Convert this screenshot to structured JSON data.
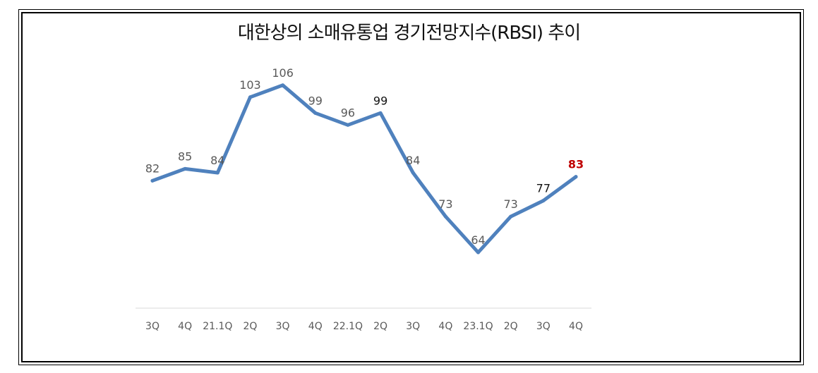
{
  "chart_data": {
    "type": "line",
    "title": "대한상의 소매유통업 경기전망지수(RBSI) 추이",
    "xlabel": "",
    "ylabel": "",
    "categories": [
      "3Q",
      "4Q",
      "21.1Q",
      "2Q",
      "3Q",
      "4Q",
      "22.1Q",
      "2Q",
      "3Q",
      "4Q",
      "23.1Q",
      "2Q",
      "3Q",
      "4Q"
    ],
    "series": [
      {
        "values": [
          82,
          85,
          84,
          103,
          106,
          99,
          96,
          99,
          84,
          73,
          64,
          73,
          77,
          83
        ]
      }
    ],
    "ylim": [
      50,
      115
    ],
    "grid": false,
    "colors": {
      "line": "#4f81bd",
      "label": "#595959",
      "highlight": "#c00000",
      "axis": "#d9d9d9"
    }
  }
}
